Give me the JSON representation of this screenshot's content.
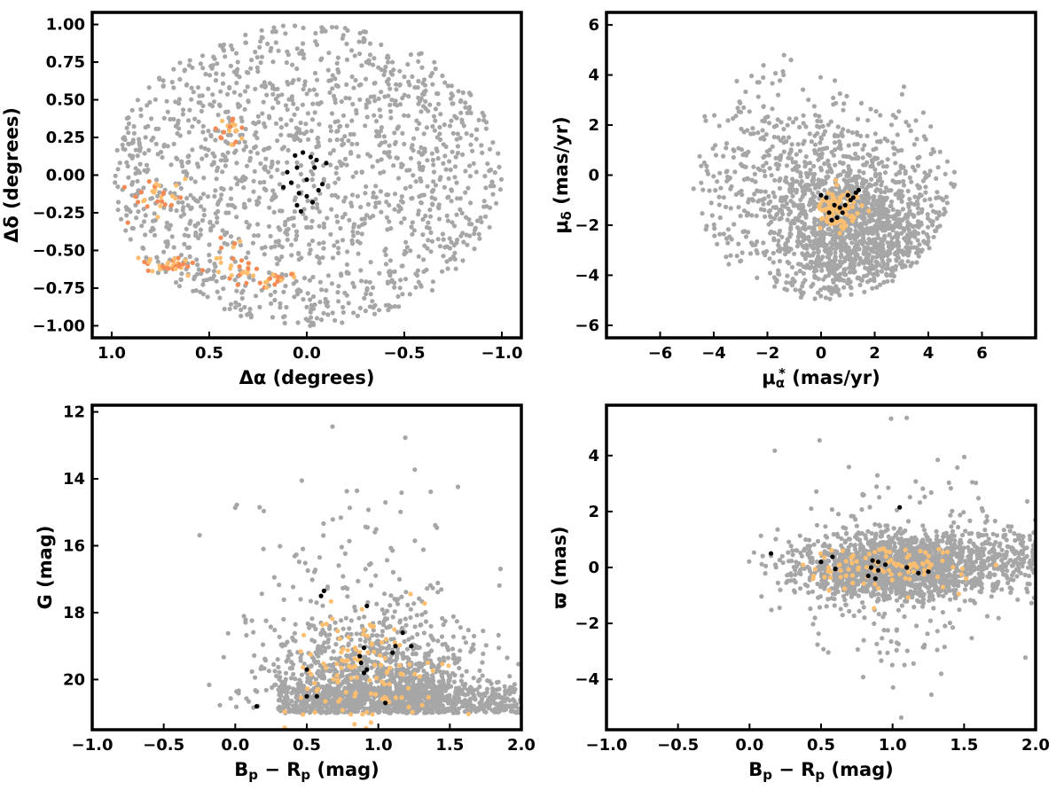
{
  "style": {
    "field_color": "#a6a6a6",
    "cluster_color": "#000000",
    "halo_colors": [
      "#fdbf6f",
      "#f4a261",
      "#f58a55"
    ],
    "frame_color": "#000000"
  },
  "chart_data": [
    {
      "type": "scatter",
      "panel": "top-left",
      "xlabel_parts": [
        "Δα",
        " (degrees)"
      ],
      "ylabel_parts": [
        "Δδ",
        " (degrees)"
      ],
      "xlim": [
        1.1,
        -1.1
      ],
      "ylim": [
        -1.08,
        1.08
      ],
      "xticks": [
        1.0,
        0.5,
        0.0,
        -0.5,
        -1.0
      ],
      "xtick_labels": [
        "1.0",
        "0.5",
        "0.0",
        "−0.5",
        "−1.0"
      ],
      "yticks": [
        -1.0,
        -0.75,
        -0.5,
        -0.25,
        0.0,
        0.25,
        0.5,
        0.75,
        1.0
      ],
      "ytick_labels": [
        "−1.00",
        "−0.75",
        "−0.50",
        "−0.25",
        "0.00",
        "0.25",
        "0.50",
        "0.75",
        "1.00"
      ],
      "grid": false,
      "legend": "none",
      "series": [
        {
          "role": "field",
          "color": "#a6a6a6",
          "count": 1500,
          "distribution": "uniform disk, radius 1.0 deg, centered (0, 0)"
        },
        {
          "role": "halo",
          "colors": [
            "#fdbf6f",
            "#f58a55"
          ],
          "clumps": [
            [
              0.38,
              0.28,
              0.05,
              0.1,
              22
            ],
            [
              0.75,
              -0.15,
              0.12,
              0.12,
              30
            ],
            [
              0.7,
              -0.6,
              0.12,
              0.06,
              34
            ],
            [
              0.35,
              -0.6,
              0.1,
              0.15,
              30
            ],
            [
              0.15,
              -0.68,
              0.1,
              0.05,
              18
            ]
          ]
        },
        {
          "role": "cluster",
          "color": "#000000",
          "points": [
            [
              -0.05,
              0.1
            ],
            [
              -0.02,
              0.12
            ],
            [
              0.02,
              0.15
            ],
            [
              0.06,
              0.13
            ],
            [
              -0.04,
              0.05
            ],
            [
              0.05,
              0.05
            ],
            [
              0.0,
              -0.03
            ],
            [
              0.08,
              -0.05
            ],
            [
              0.12,
              -0.08
            ],
            [
              0.04,
              -0.12
            ],
            [
              0.0,
              -0.14
            ],
            [
              -0.03,
              -0.18
            ],
            [
              0.05,
              -0.2
            ],
            [
              0.03,
              -0.24
            ],
            [
              -0.08,
              -0.06
            ],
            [
              -0.1,
              0.08
            ],
            [
              0.1,
              0.02
            ],
            [
              -0.06,
              -0.1
            ]
          ]
        }
      ]
    },
    {
      "type": "scatter",
      "panel": "top-right",
      "xlabel_parts": [
        "μ",
        "α",
        "*",
        "  (mas/yr)"
      ],
      "ylabel_parts": [
        "μ",
        "δ",
        " (mas/yr)"
      ],
      "xlim": [
        -8,
        8
      ],
      "ylim": [
        -6.5,
        6.5
      ],
      "xticks": [
        -6,
        -4,
        -2,
        0,
        2,
        4,
        6
      ],
      "xtick_labels": [
        "−6",
        "−4",
        "−2",
        "0",
        "2",
        "4",
        "6"
      ],
      "yticks": [
        -6,
        -4,
        -2,
        0,
        2,
        4,
        6
      ],
      "ytick_labels": [
        "−6",
        "−4",
        "−2",
        "0",
        "2",
        "4",
        "6"
      ],
      "grid": false,
      "legend": "none",
      "series": [
        {
          "role": "field",
          "color": "#a6a6a6",
          "count": 1800,
          "distribution": "concentrated near (1.5, -2.5), cut at radius 5 around (0, 0); sparse tail to (-5, 5)"
        },
        {
          "role": "halo",
          "colors": [
            "#fdbf6f"
          ],
          "center": [
            0.7,
            -1.3
          ],
          "sigma": [
            0.45,
            0.45
          ],
          "count": 90
        },
        {
          "role": "cluster",
          "color": "#000000",
          "points": [
            [
              0.0,
              -0.8
            ],
            [
              0.2,
              -0.9
            ],
            [
              0.5,
              -1.2
            ],
            [
              0.7,
              -1.3
            ],
            [
              0.9,
              -1.2
            ],
            [
              1.0,
              -0.8
            ],
            [
              1.3,
              -0.7
            ],
            [
              1.4,
              -0.6
            ],
            [
              0.3,
              -1.5
            ],
            [
              0.6,
              -1.7
            ],
            [
              1.1,
              -1.0
            ],
            [
              0.8,
              -1.5
            ],
            [
              0.4,
              -1.8
            ],
            [
              1.2,
              -0.9
            ]
          ]
        }
      ]
    },
    {
      "type": "scatter",
      "panel": "bottom-left",
      "xlabel_parts": [
        "B",
        "p",
        " − ",
        "R",
        "p",
        " (mag)"
      ],
      "ylabel_parts": [
        "G",
        " (mag)"
      ],
      "xlim": [
        -1.0,
        2.0
      ],
      "ylim": [
        21.5,
        11.8
      ],
      "xticks": [
        -1.0,
        -0.5,
        0.0,
        0.5,
        1.0,
        1.5,
        2.0
      ],
      "xtick_labels": [
        "−1.0",
        "−0.5",
        "0.0",
        "0.5",
        "1.0",
        "1.5",
        "2.0"
      ],
      "yticks": [
        12,
        14,
        16,
        18,
        20
      ],
      "ytick_labels": [
        "12",
        "14",
        "16",
        "18",
        "20"
      ],
      "grid": false,
      "legend": "none",
      "series": [
        {
          "role": "field",
          "color": "#a6a6a6",
          "count": 2000,
          "distribution": "faint limit G = 21, bulk at Bp-Rp 0.4-1.6 and G 18-21, sparse bright tail"
        },
        {
          "role": "halo",
          "colors": [
            "#fdbf6f"
          ],
          "center": [
            0.9,
            19.8
          ],
          "sigma": [
            0.25,
            0.9
          ],
          "count": 120
        },
        {
          "role": "cluster",
          "color": "#000000",
          "points": [
            [
              0.15,
              20.8
            ],
            [
              0.5,
              20.5
            ],
            [
              0.57,
              20.5
            ],
            [
              1.05,
              20.7
            ],
            [
              0.5,
              19.7
            ],
            [
              0.9,
              19.8
            ],
            [
              0.92,
              19.7
            ],
            [
              0.88,
              19.5
            ],
            [
              0.87,
              19.3
            ],
            [
              0.9,
              19.05
            ],
            [
              1.1,
              19.2
            ],
            [
              1.12,
              19.0
            ],
            [
              1.23,
              19.0
            ],
            [
              1.17,
              18.6
            ],
            [
              0.92,
              17.8
            ],
            [
              0.6,
              17.5
            ],
            [
              0.62,
              17.35
            ]
          ]
        }
      ]
    },
    {
      "type": "scatter",
      "panel": "bottom-right",
      "xlabel_parts": [
        "B",
        "p",
        " − ",
        "R",
        "p",
        " (mag)"
      ],
      "ylabel_parts": [
        "ϖ",
        " (mas)"
      ],
      "xlim": [
        -1.0,
        2.0
      ],
      "ylim": [
        -5.8,
        5.8
      ],
      "xticks": [
        -1.0,
        -0.5,
        0.0,
        0.5,
        1.0,
        1.5,
        2.0
      ],
      "xtick_labels": [
        "−1.0",
        "−0.5",
        "0.0",
        "0.5",
        "1.0",
        "1.5",
        "2.0"
      ],
      "yticks": [
        -4,
        -2,
        0,
        2,
        4
      ],
      "ytick_labels": [
        "−4",
        "−2",
        "0",
        "2",
        "4"
      ],
      "grid": false,
      "legend": "none",
      "series": [
        {
          "role": "field",
          "color": "#a6a6a6",
          "count": 2000,
          "distribution": "centered near parallax 0, Bp-Rp 0.4-2.0, scatter to about ±5 mas"
        },
        {
          "role": "halo",
          "colors": [
            "#fdbf6f"
          ],
          "center": [
            0.95,
            0.0
          ],
          "sigma": [
            0.3,
            0.45
          ],
          "count": 100
        },
        {
          "role": "cluster",
          "color": "#000000",
          "points": [
            [
              0.15,
              0.5
            ],
            [
              0.5,
              0.2
            ],
            [
              0.58,
              0.38
            ],
            [
              0.6,
              -0.05
            ],
            [
              0.86,
              0.25
            ],
            [
              0.9,
              0.2
            ],
            [
              0.85,
              0.0
            ],
            [
              0.9,
              -0.1
            ],
            [
              0.88,
              -0.4
            ],
            [
              0.83,
              -0.3
            ],
            [
              1.05,
              2.15
            ],
            [
              1.1,
              0.0
            ],
            [
              1.18,
              -0.2
            ],
            [
              1.25,
              -0.15
            ],
            [
              0.95,
              0.1
            ]
          ]
        }
      ]
    }
  ]
}
